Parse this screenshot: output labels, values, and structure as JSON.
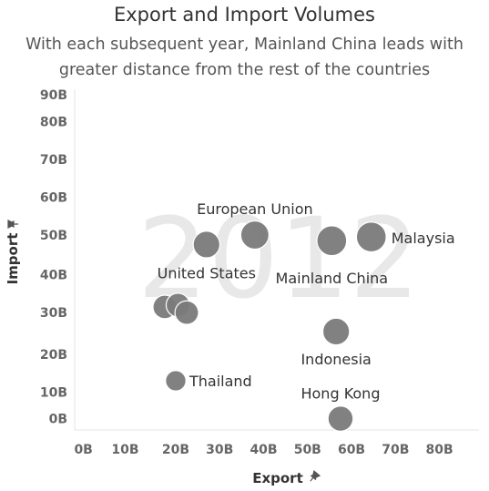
{
  "chart_data": {
    "type": "scatter",
    "title": "Export and Import Volumes",
    "subtitle_lines": [
      "With each subsequent year, Mainland China leads with",
      "greater distance from the rest of the countries"
    ],
    "xlabel": "Export",
    "ylabel": "Import",
    "axis_pin_icon": "pin-icon",
    "year": "2012",
    "x_ticks": [
      "0B",
      "10B",
      "20B",
      "30B",
      "40B",
      "50B",
      "60B",
      "70B",
      "80B"
    ],
    "x_tick_values": [
      -1,
      8.5,
      20,
      30,
      40,
      50,
      60,
      70,
      80
    ],
    "y_ticks": [
      "0B",
      "10B",
      "20B",
      "30B",
      "40B",
      "50B",
      "60B",
      "70B",
      "80B",
      "90B"
    ],
    "y_tick_values": [
      0,
      7,
      17,
      28,
      38,
      48.5,
      58.5,
      68.5,
      78.5,
      85.5
    ],
    "xlim": [
      -3,
      89
    ],
    "ylim": [
      -3,
      87
    ],
    "point_color": "#7a7a7a",
    "points": [
      {
        "label": "Mainland China",
        "x": 55.5,
        "y": 47,
        "size": 11
      },
      {
        "label": "Malaysia",
        "x": 64.5,
        "y": 48,
        "size": 11
      },
      {
        "label": "European Union",
        "x": 38,
        "y": 48.5,
        "size": 10
      },
      {
        "label": "United States",
        "x": 27,
        "y": 46,
        "size": 9
      },
      {
        "label": "Indonesia",
        "x": 56.5,
        "y": 23,
        "size": 9
      },
      {
        "label": "Hong Kong",
        "x": 57.5,
        "y": 0,
        "size": 8
      },
      {
        "label": "Thailand",
        "x": 20,
        "y": 10,
        "size": 5
      },
      {
        "label": "",
        "x": 17.5,
        "y": 29.5,
        "size": 7
      },
      {
        "label": "",
        "x": 20.5,
        "y": 30,
        "size": 7
      },
      {
        "label": "",
        "x": 22.5,
        "y": 28,
        "size": 7
      }
    ]
  }
}
